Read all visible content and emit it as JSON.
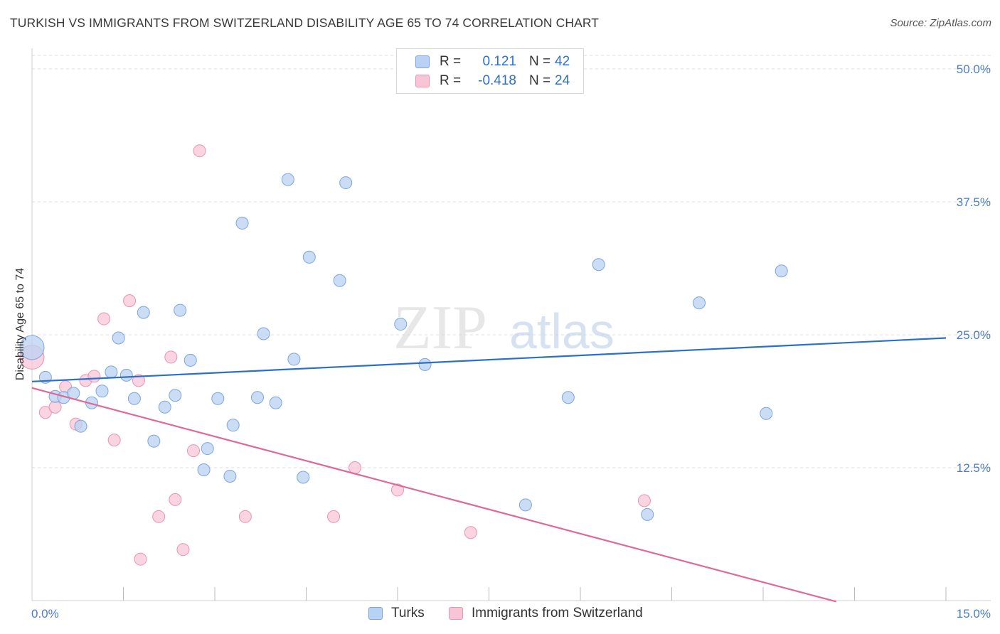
{
  "header": {
    "title": "TURKISH VS IMMIGRANTS FROM SWITZERLAND DISABILITY AGE 65 TO 74 CORRELATION CHART",
    "source": "Source: ZipAtlas.com"
  },
  "watermark": {
    "zip": "ZIP",
    "atlas": "atlas"
  },
  "legend": {
    "rows": [
      {
        "r_label": "R =",
        "r_value": "0.121",
        "n_label": "N =",
        "n_value": "42"
      },
      {
        "r_label": "R =",
        "r_value": "-0.418",
        "n_label": "N =",
        "n_value": "24"
      }
    ]
  },
  "bottom_legend": {
    "turks": "Turks",
    "swiss": "Immigrants from Switzerland"
  },
  "colors": {
    "turks_fill": "#b9d1f2",
    "turks_stroke": "#7aa6e0",
    "turks_line": "#2a6fcd",
    "swiss_fill": "#f8c5d5",
    "swiss_stroke": "#e995b0",
    "swiss_line": "#e06896",
    "grid": "#dcdcdc",
    "tick_label": "#4a7cc9"
  },
  "chart_data": {
    "type": "scatter",
    "title": "TURKISH VS IMMIGRANTS FROM SWITZERLAND DISABILITY AGE 65 TO 74 CORRELATION CHART",
    "xlabel": "",
    "ylabel": "Disability Age 65 to 74",
    "xlim": [
      0,
      15
    ],
    "ylim": [
      0,
      50
    ],
    "x_tick_labels": [
      "0.0%",
      "15.0%"
    ],
    "y_ticks": [
      12.5,
      25,
      37.5,
      50
    ],
    "y_tick_labels": [
      "12.5%",
      "25.0%",
      "37.5%",
      "50.0%"
    ],
    "grid": true,
    "legend_position": "top-center",
    "series": [
      {
        "name": "Turks",
        "trend": {
          "x": [
            0,
            15
          ],
          "y": [
            20.6,
            24.7
          ]
        },
        "points": [
          {
            "x": 0.0,
            "y": 23.8,
            "big": true
          },
          {
            "x": 0.22,
            "y": 21.0,
            "big": false
          },
          {
            "x": 0.38,
            "y": 19.2
          },
          {
            "x": 0.52,
            "y": 19.1
          },
          {
            "x": 0.68,
            "y": 19.5
          },
          {
            "x": 0.8,
            "y": 16.4
          },
          {
            "x": 0.98,
            "y": 18.6
          },
          {
            "x": 1.15,
            "y": 19.7
          },
          {
            "x": 1.3,
            "y": 21.5
          },
          {
            "x": 1.42,
            "y": 24.7
          },
          {
            "x": 1.55,
            "y": 21.2
          },
          {
            "x": 1.68,
            "y": 19.0
          },
          {
            "x": 1.83,
            "y": 27.1
          },
          {
            "x": 2.0,
            "y": 15.0
          },
          {
            "x": 2.18,
            "y": 18.2
          },
          {
            "x": 2.35,
            "y": 19.3
          },
          {
            "x": 2.43,
            "y": 27.3
          },
          {
            "x": 2.6,
            "y": 22.6
          },
          {
            "x": 2.82,
            "y": 12.3
          },
          {
            "x": 2.88,
            "y": 14.3
          },
          {
            "x": 3.05,
            "y": 19.0
          },
          {
            "x": 3.25,
            "y": 11.7
          },
          {
            "x": 3.3,
            "y": 16.5
          },
          {
            "x": 3.45,
            "y": 35.5
          },
          {
            "x": 3.7,
            "y": 19.1
          },
          {
            "x": 3.8,
            "y": 25.1
          },
          {
            "x": 4.0,
            "y": 18.6
          },
          {
            "x": 4.2,
            "y": 39.6
          },
          {
            "x": 4.3,
            "y": 22.7
          },
          {
            "x": 4.45,
            "y": 11.6
          },
          {
            "x": 4.55,
            "y": 32.3
          },
          {
            "x": 5.05,
            "y": 30.1
          },
          {
            "x": 5.15,
            "y": 39.3
          },
          {
            "x": 6.05,
            "y": 26.0
          },
          {
            "x": 6.45,
            "y": 22.2
          },
          {
            "x": 8.1,
            "y": 9.0
          },
          {
            "x": 8.8,
            "y": 19.1
          },
          {
            "x": 9.3,
            "y": 31.6
          },
          {
            "x": 10.1,
            "y": 8.1
          },
          {
            "x": 10.95,
            "y": 28.0
          },
          {
            "x": 12.05,
            "y": 17.6
          },
          {
            "x": 12.3,
            "y": 31.0
          }
        ]
      },
      {
        "name": "Immigrants from Switzerland",
        "trend": {
          "x": [
            0,
            13.2
          ],
          "y": [
            20.0,
            -0.1
          ]
        },
        "points": [
          {
            "x": 0.0,
            "y": 22.9,
            "big": true
          },
          {
            "x": 0.22,
            "y": 17.7
          },
          {
            "x": 0.38,
            "y": 18.2
          },
          {
            "x": 0.55,
            "y": 20.1
          },
          {
            "x": 0.72,
            "y": 16.6
          },
          {
            "x": 0.88,
            "y": 20.7
          },
          {
            "x": 1.02,
            "y": 21.1
          },
          {
            "x": 1.18,
            "y": 26.5
          },
          {
            "x": 1.35,
            "y": 15.1
          },
          {
            "x": 1.6,
            "y": 28.2
          },
          {
            "x": 1.75,
            "y": 20.7
          },
          {
            "x": 1.78,
            "y": 3.9
          },
          {
            "x": 2.08,
            "y": 7.9
          },
          {
            "x": 2.28,
            "y": 22.9
          },
          {
            "x": 2.35,
            "y": 9.5
          },
          {
            "x": 2.48,
            "y": 4.8
          },
          {
            "x": 2.65,
            "y": 14.1
          },
          {
            "x": 2.75,
            "y": 42.3
          },
          {
            "x": 3.5,
            "y": 7.9
          },
          {
            "x": 4.95,
            "y": 7.9
          },
          {
            "x": 5.3,
            "y": 12.5
          },
          {
            "x": 6.0,
            "y": 10.4
          },
          {
            "x": 7.2,
            "y": 6.4
          },
          {
            "x": 10.05,
            "y": 9.4
          }
        ]
      }
    ]
  }
}
